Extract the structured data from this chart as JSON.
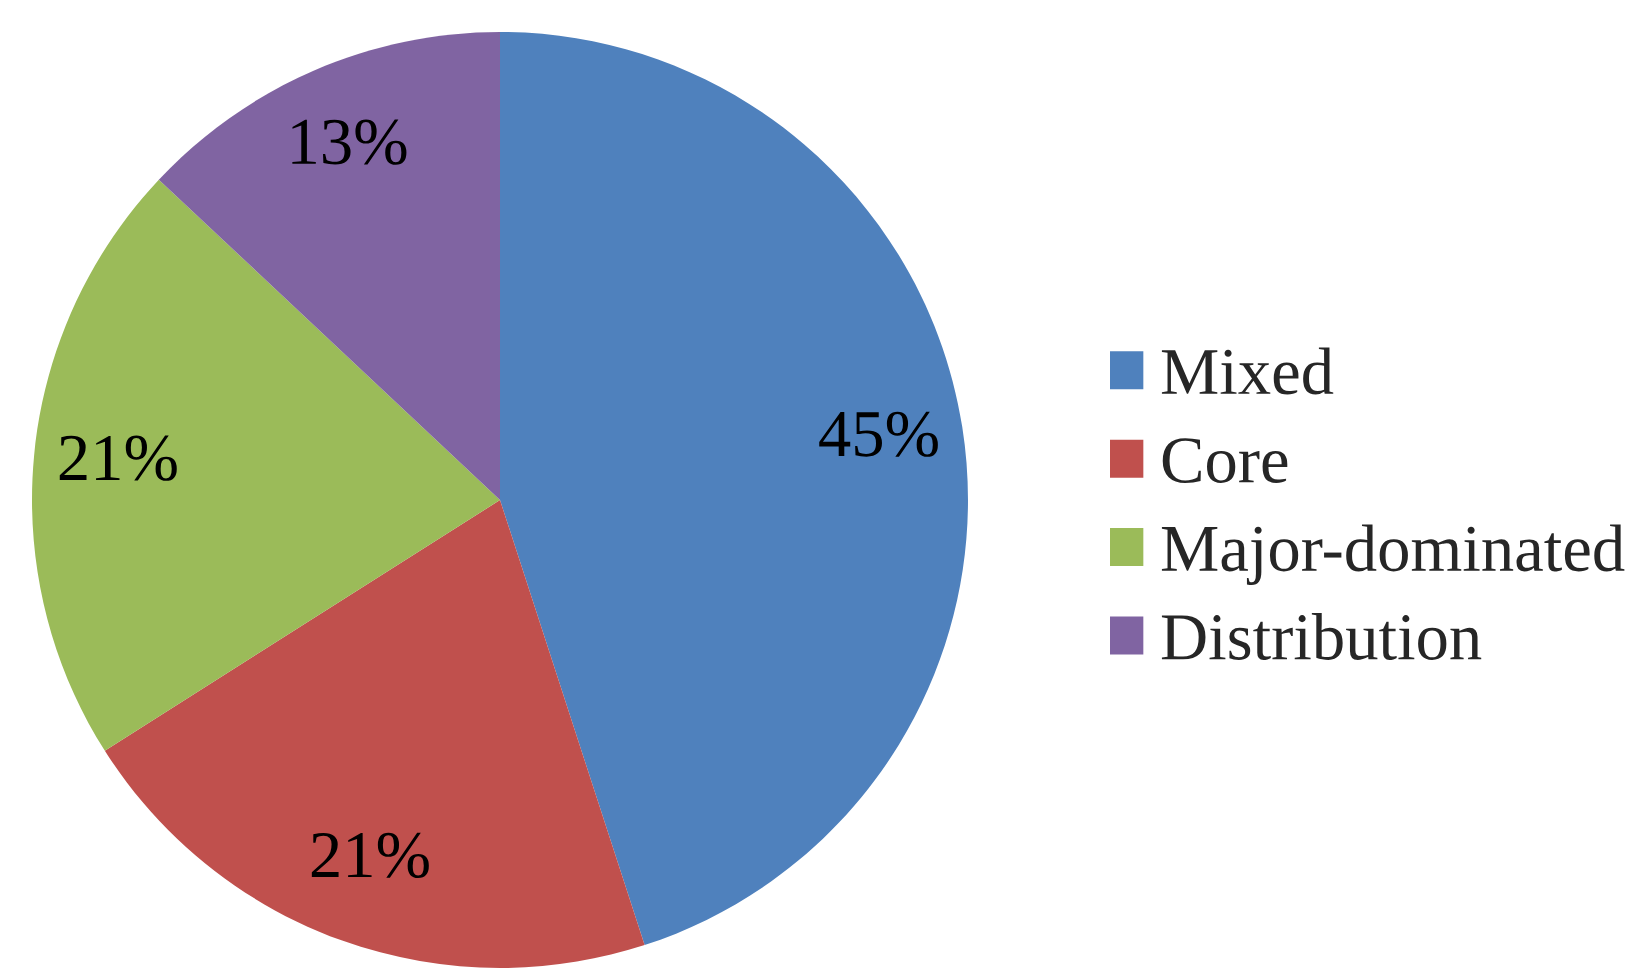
{
  "chart_data": {
    "type": "pie",
    "categories": [
      "Mixed",
      "Core",
      "Major-dominated",
      "Distribution"
    ],
    "values": [
      45,
      21,
      21,
      13
    ],
    "colors": [
      "#4f81bd",
      "#c0504d",
      "#9bbb59",
      "#8064a2"
    ],
    "value_labels": [
      "45%",
      "21%",
      "21%",
      "13%"
    ],
    "legend": "right"
  }
}
